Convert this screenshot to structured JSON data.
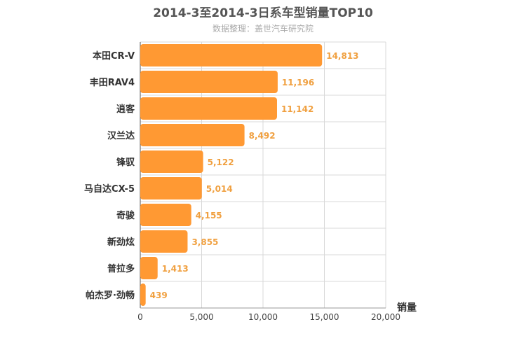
{
  "chart_data": {
    "type": "bar",
    "orientation": "horizontal",
    "title": "2014-3至2014-3日系车型销量TOP10",
    "subtitle": "数据整理：盖世汽车研究院",
    "categories": [
      "本田CR-V",
      "丰田RAV4",
      "逍客",
      "汉兰达",
      "锋驭",
      "马自达CX-5",
      "奇骏",
      "新劲炫",
      "普拉多",
      "帕杰罗·劲畅"
    ],
    "values": [
      14813,
      11196,
      11142,
      8492,
      5122,
      5014,
      4155,
      3855,
      1413,
      439
    ],
    "value_labels": [
      "14,813",
      "11,196",
      "11,142",
      "8,492",
      "5,122",
      "5,014",
      "4,155",
      "3,855",
      "1,413",
      "439"
    ],
    "xlabel": "销量",
    "xlim": [
      0,
      20000
    ],
    "xticks": [
      0,
      5000,
      10000,
      15000,
      20000
    ],
    "xtick_labels": [
      "0",
      "5,000",
      "10,000",
      "15,000",
      "20,000"
    ],
    "grid": true,
    "bar_color": "#ff9933",
    "label_color": "#f0a040"
  }
}
